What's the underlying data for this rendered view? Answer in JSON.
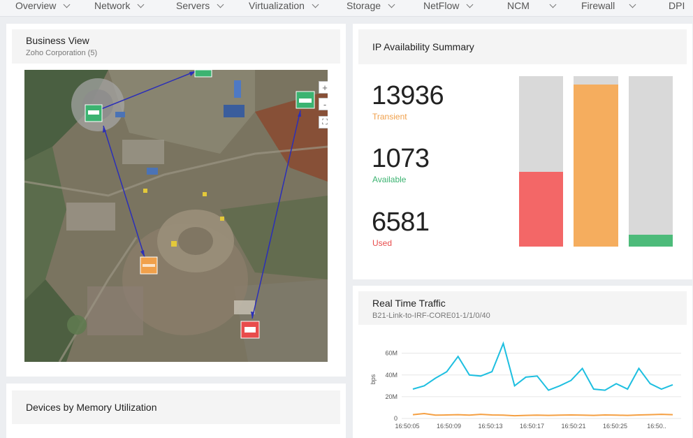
{
  "nav": {
    "items": [
      {
        "label": "Overview",
        "dropdown": true
      },
      {
        "label": "Network",
        "dropdown": true
      },
      {
        "label": "Servers",
        "dropdown": true
      },
      {
        "label": "Virtualization",
        "dropdown": true
      },
      {
        "label": "Storage",
        "dropdown": true
      },
      {
        "label": "NetFlow",
        "dropdown": true
      },
      {
        "label": "NCM",
        "dropdown": true
      },
      {
        "label": "Firewall",
        "dropdown": true
      },
      {
        "label": "DPI",
        "dropdown": false
      }
    ]
  },
  "business_view": {
    "title": "Business View",
    "subtitle": "Zoho Corporation (5)",
    "map_controls": {
      "zoom_in": "+",
      "zoom_out": "-",
      "fullscreen": "⛶"
    },
    "device_status_colors": {
      "ok": "#3cb371",
      "warning": "#f0a04b",
      "critical": "#e84c4c"
    }
  },
  "ip_summary": {
    "title": "IP Availability Summary",
    "stats": [
      {
        "value": "13936",
        "label": "Transient",
        "color": "#f0a04b"
      },
      {
        "value": "1073",
        "label": "Available",
        "color": "#3cb371"
      },
      {
        "value": "6581",
        "label": "Used",
        "color": "#e84c4c"
      }
    ],
    "bars": [
      {
        "name": "used",
        "fraction": 0.44,
        "color": "#f36767"
      },
      {
        "name": "transient",
        "fraction": 0.95,
        "color": "#f5ad5e"
      },
      {
        "name": "available",
        "fraction": 0.07,
        "color": "#4dbb7a"
      }
    ]
  },
  "devices_memory": {
    "title": "Devices by Memory Utilization"
  },
  "traffic": {
    "title": "Real Time Traffic",
    "subtitle": "B21-Link-to-IRF-CORE01-1/1/0/40"
  },
  "chart_data": {
    "type": "line",
    "title": "Real Time Traffic",
    "ylabel": "bps",
    "ylim": [
      0,
      72000000
    ],
    "y_ticks": [
      "0",
      "20M",
      "40M",
      "60M"
    ],
    "x_tick_labels": [
      "16:50:05",
      "16:50:09",
      "16:50:13",
      "16:50:17",
      "16:50:21",
      "16:50:25",
      "16:50.."
    ],
    "grid": true,
    "series": [
      {
        "color": "#1ebfe0",
        "values": [
          27000000,
          30000000,
          37000000,
          43000000,
          57000000,
          40000000,
          39000000,
          43000000,
          69000000,
          30000000,
          38000000,
          39000000,
          26000000,
          30000000,
          35000000,
          46000000,
          27000000,
          26000000,
          32000000,
          27000000,
          46000000,
          32000000,
          27000000,
          31000000
        ]
      },
      {
        "color": "#f5a043",
        "values": [
          3500000,
          4500000,
          3000000,
          3200000,
          3500000,
          3000000,
          3800000,
          3200000,
          3000000,
          2500000,
          2800000,
          3000000,
          2800000,
          3000000,
          3200000,
          3000000,
          2800000,
          3200000,
          3000000,
          2800000,
          3200000,
          3500000,
          3800000,
          3500000
        ]
      }
    ]
  }
}
